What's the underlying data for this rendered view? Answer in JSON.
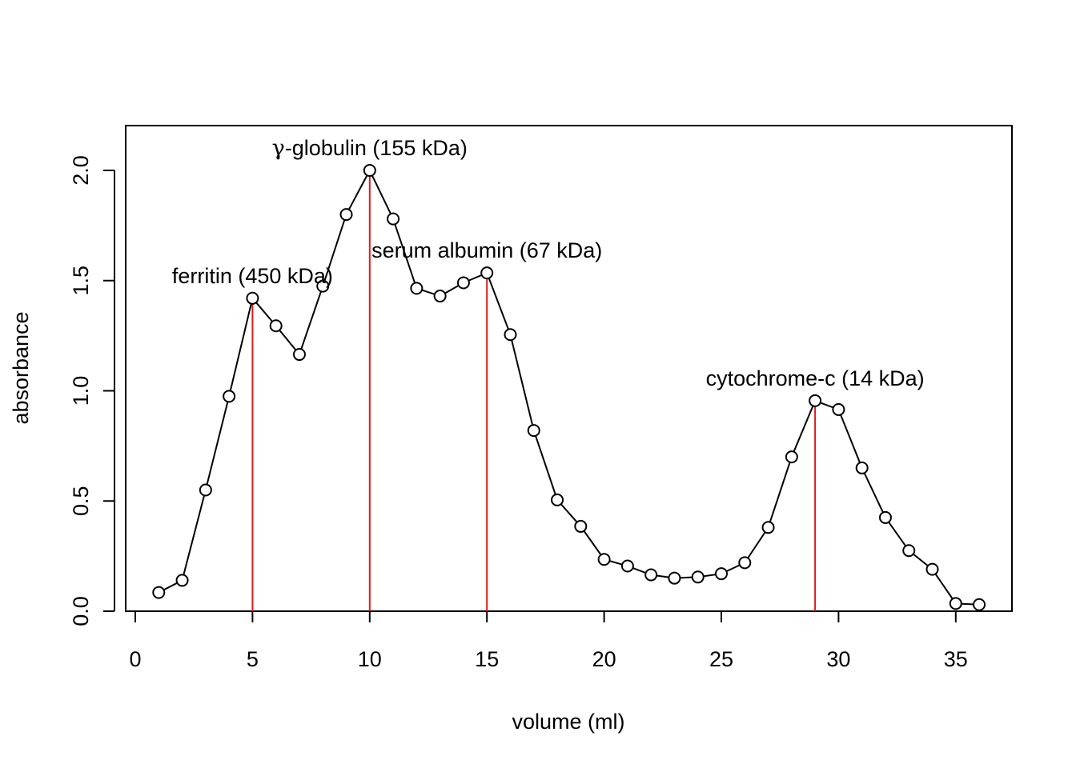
{
  "chart_data": {
    "type": "line",
    "title": "",
    "xlabel": "volume (ml)",
    "ylabel": "absorbance",
    "xlim": [
      0,
      36
    ],
    "ylim": [
      0,
      2.0
    ],
    "x_ticks": [
      "0",
      "5",
      "10",
      "15",
      "20",
      "25",
      "30",
      "35"
    ],
    "y_ticks": [
      "0.0",
      "0.5",
      "1.0",
      "1.5",
      "2.0"
    ],
    "grid": false,
    "legend": "none",
    "marker": "open-circle",
    "line_color": "#000000",
    "peak_line_color": "#e0191c",
    "series": [
      {
        "x": [
          1,
          2,
          3,
          4,
          5,
          6,
          7,
          8,
          9,
          10,
          11,
          12,
          13,
          14,
          15,
          16,
          17,
          18,
          19,
          20,
          21,
          22,
          23,
          24,
          25,
          26,
          27,
          28,
          29,
          30,
          31,
          32,
          33,
          34,
          35,
          36
        ],
        "values": [
          0.085,
          0.14,
          0.55,
          0.975,
          1.42,
          1.295,
          1.165,
          1.475,
          1.8,
          2.0,
          1.78,
          1.465,
          1.43,
          1.49,
          1.535,
          1.255,
          0.82,
          0.505,
          0.385,
          0.235,
          0.205,
          0.165,
          0.15,
          0.155,
          0.17,
          0.22,
          0.38,
          0.7,
          0.955,
          0.915,
          0.65,
          0.425,
          0.275,
          0.19,
          0.035,
          0.03
        ]
      }
    ],
    "peaks": [
      {
        "x": 5,
        "y": 1.42,
        "label": "ferritin (450 kDa)"
      },
      {
        "x": 10,
        "y": 2.0,
        "label_prefix": "γ",
        "label": "-globulin (155 kDa)"
      },
      {
        "x": 15,
        "y": 1.535,
        "label": "serum albumin (67 kDa)"
      },
      {
        "x": 29,
        "y": 0.955,
        "label": "cytochrome-c (14 kDa)"
      }
    ]
  }
}
